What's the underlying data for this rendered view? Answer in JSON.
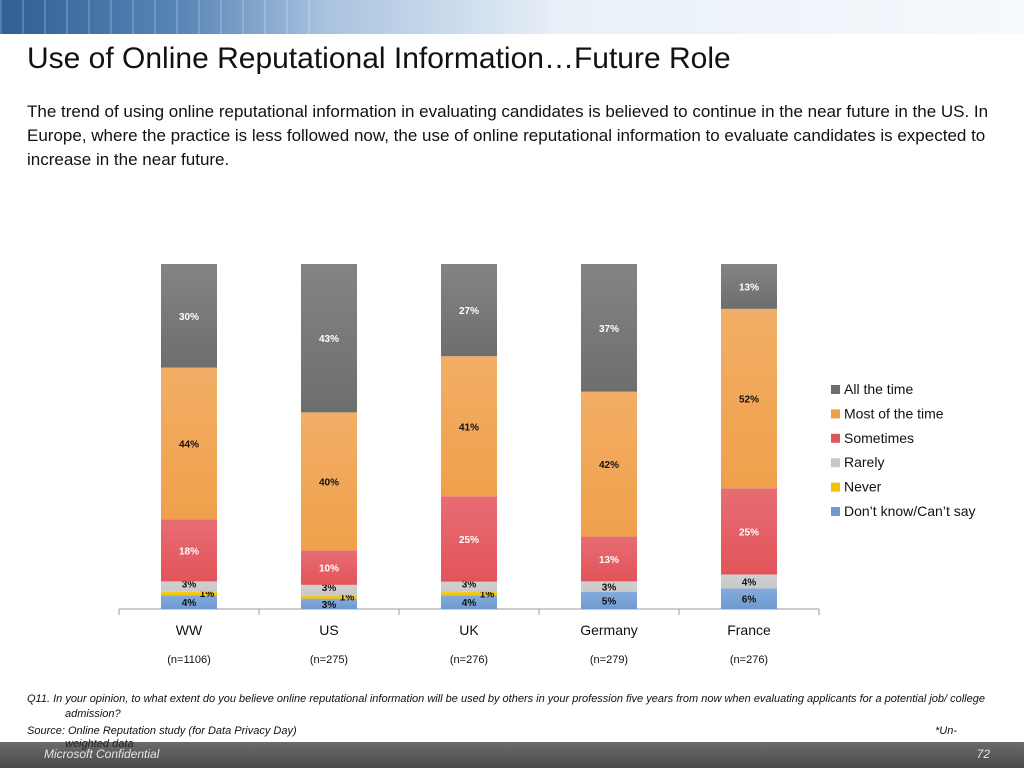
{
  "slide": {
    "title": "Use of Online Reputational Information…Future Role",
    "subtitle": "The trend of using online reputational information in evaluating candidates is believed to continue in the near future in the US. In Europe, where the practice is less followed now, the use of online reputational information to evaluate candidates is expected to increase in the near future.",
    "question": "Q11. In your opinion, to what extent do you believe online reputational information will be used by others in your profession five years from now when evaluating applicants for a potential job/ college admission?",
    "source": "Source: Online Reputation study (for Data Privacy Day)",
    "unweighted_1": "*Un-",
    "unweighted_2": "weighted data",
    "footer_left": "Microsoft Confidential",
    "page_number": "72"
  },
  "chart_data": {
    "type": "bar",
    "stacked": true,
    "categories": [
      "WW",
      "US",
      "UK",
      "Germany",
      "France"
    ],
    "sample_sizes": [
      "(n=1106)",
      "(n=275)",
      "(n=276)",
      "(n=279)",
      "(n=276)"
    ],
    "ylim": [
      0,
      100
    ],
    "legend_position": "right",
    "series": [
      {
        "name": "Don’t know/Can’t say",
        "color": "#6f9bd2",
        "values": [
          4,
          3,
          4,
          5,
          6
        ],
        "labels": [
          "4%",
          "3%",
          "4%",
          "5%",
          "6%"
        ]
      },
      {
        "name": "Never",
        "color": "#f2c200",
        "values": [
          1,
          1,
          1,
          0,
          0
        ],
        "labels": [
          "1%",
          "1%",
          "1%",
          "",
          ""
        ]
      },
      {
        "name": "Rarely",
        "color": "#c8c8c8",
        "values": [
          3,
          3,
          3,
          3,
          4
        ],
        "labels": [
          "3%",
          "3%",
          "3%",
          "3%",
          "4%"
        ]
      },
      {
        "name": "Sometimes",
        "color": "#e2545a",
        "values": [
          18,
          10,
          25,
          13,
          25
        ],
        "labels": [
          "18%",
          "10%",
          "25%",
          "13%",
          "25%"
        ]
      },
      {
        "name": "Most of the time",
        "color": "#f0a04b",
        "values": [
          44,
          40,
          41,
          42,
          52
        ],
        "labels": [
          "44%",
          "40%",
          "41%",
          "42%",
          "52%"
        ]
      },
      {
        "name": "All the time",
        "color": "#6e6e6e",
        "values": [
          30,
          43,
          27,
          37,
          13
        ],
        "labels": [
          "30%",
          "43%",
          "27%",
          "37%",
          "13%"
        ]
      }
    ],
    "legend_order": [
      "All the time",
      "Most of the time",
      "Sometimes",
      "Rarely",
      "Never",
      "Don’t know/Can’t say"
    ]
  }
}
